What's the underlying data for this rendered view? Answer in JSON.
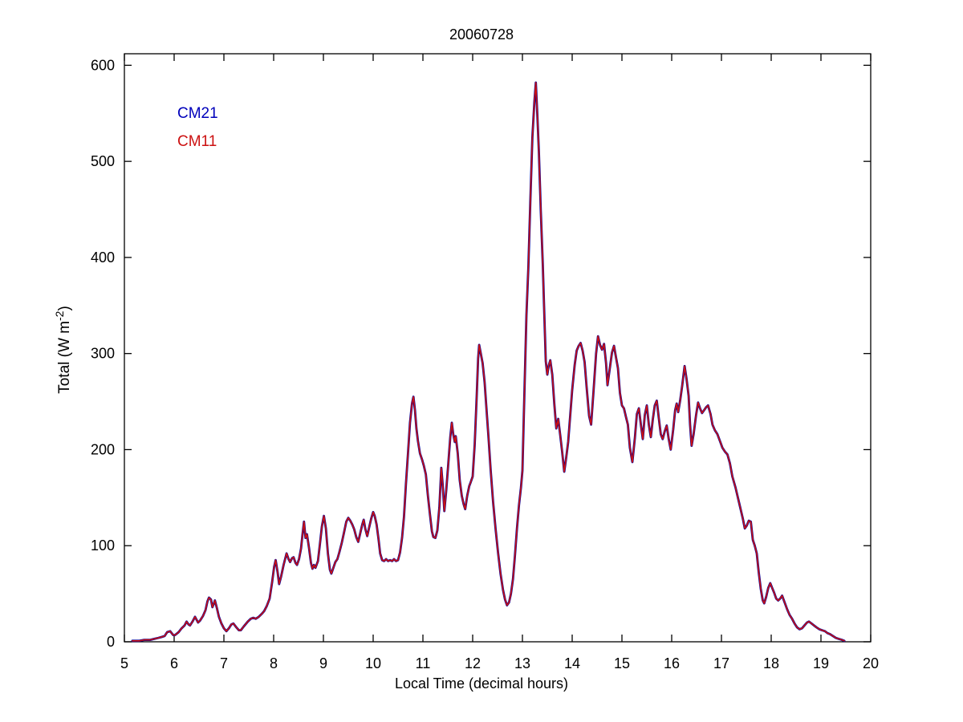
{
  "figure": {
    "title": "20060728",
    "background_color": "#ffffff",
    "axis_color": "#000000"
  },
  "chart_data": {
    "type": "line",
    "title": "20060728",
    "xlabel": "Local Time (decimal hours)",
    "ylabel": "Total (W m^-2)",
    "ylabel_parts": {
      "base": "Total (W m",
      "superscript": "-2",
      "close": ")"
    },
    "xlim": [
      5,
      20
    ],
    "ylim": [
      0,
      612
    ],
    "xticks": [
      5,
      6,
      7,
      8,
      9,
      10,
      11,
      12,
      13,
      14,
      15,
      16,
      17,
      18,
      19,
      20
    ],
    "yticks": [
      0,
      100,
      200,
      300,
      400,
      500,
      600
    ],
    "grid": false,
    "box": true,
    "legend": {
      "position": "upper-left-inside-text-only",
      "entries": [
        {
          "label": "CM21",
          "color": "#0000BB"
        },
        {
          "label": "CM11",
          "color": "#CC1111"
        }
      ]
    },
    "series": [
      {
        "name": "CM21",
        "color": "#000099",
        "line_width": 2.8,
        "note": "drawn first, visually coincident with CM11; peeks out as dark fringes"
      },
      {
        "name": "CM11",
        "color": "#CC1111",
        "line_width": 1.6,
        "note": "drawn on top of CM21"
      }
    ],
    "points_t_v": [
      [
        5.16,
        1
      ],
      [
        5.3,
        1
      ],
      [
        5.4,
        2
      ],
      [
        5.52,
        2
      ],
      [
        5.6,
        3
      ],
      [
        5.68,
        4
      ],
      [
        5.75,
        5
      ],
      [
        5.81,
        6
      ],
      [
        5.86,
        10
      ],
      [
        5.92,
        11
      ],
      [
        5.98,
        7
      ],
      [
        6.02,
        7
      ],
      [
        6.09,
        10
      ],
      [
        6.15,
        14
      ],
      [
        6.21,
        17
      ],
      [
        6.25,
        21
      ],
      [
        6.29,
        18
      ],
      [
        6.32,
        17
      ],
      [
        6.37,
        21
      ],
      [
        6.42,
        26
      ],
      [
        6.48,
        20
      ],
      [
        6.52,
        22
      ],
      [
        6.58,
        27
      ],
      [
        6.63,
        33
      ],
      [
        6.67,
        42
      ],
      [
        6.7,
        46
      ],
      [
        6.74,
        44
      ],
      [
        6.77,
        36
      ],
      [
        6.8,
        40
      ],
      [
        6.82,
        43
      ],
      [
        6.86,
        35
      ],
      [
        6.9,
        26
      ],
      [
        6.95,
        19
      ],
      [
        7.0,
        14
      ],
      [
        7.05,
        11
      ],
      [
        7.1,
        14
      ],
      [
        7.15,
        18
      ],
      [
        7.19,
        19
      ],
      [
        7.25,
        15
      ],
      [
        7.3,
        12
      ],
      [
        7.34,
        12
      ],
      [
        7.4,
        16
      ],
      [
        7.48,
        21
      ],
      [
        7.54,
        24
      ],
      [
        7.59,
        25
      ],
      [
        7.64,
        24
      ],
      [
        7.7,
        26
      ],
      [
        7.76,
        29
      ],
      [
        7.81,
        32
      ],
      [
        7.86,
        37
      ],
      [
        7.92,
        45
      ],
      [
        7.97,
        62
      ],
      [
        8.01,
        78
      ],
      [
        8.04,
        85
      ],
      [
        8.08,
        72
      ],
      [
        8.11,
        60
      ],
      [
        8.15,
        68
      ],
      [
        8.2,
        80
      ],
      [
        8.26,
        92
      ],
      [
        8.3,
        86
      ],
      [
        8.33,
        83
      ],
      [
        8.37,
        87
      ],
      [
        8.4,
        88
      ],
      [
        8.44,
        82
      ],
      [
        8.47,
        80
      ],
      [
        8.51,
        86
      ],
      [
        8.55,
        97
      ],
      [
        8.58,
        112
      ],
      [
        8.61,
        125
      ],
      [
        8.64,
        108
      ],
      [
        8.67,
        112
      ],
      [
        8.71,
        98
      ],
      [
        8.75,
        82
      ],
      [
        8.78,
        76
      ],
      [
        8.81,
        80
      ],
      [
        8.84,
        77
      ],
      [
        8.89,
        84
      ],
      [
        8.93,
        102
      ],
      [
        8.97,
        120
      ],
      [
        9.01,
        131
      ],
      [
        9.05,
        118
      ],
      [
        9.09,
        92
      ],
      [
        9.13,
        75
      ],
      [
        9.16,
        71
      ],
      [
        9.2,
        77
      ],
      [
        9.24,
        83
      ],
      [
        9.28,
        86
      ],
      [
        9.32,
        93
      ],
      [
        9.37,
        103
      ],
      [
        9.42,
        115
      ],
      [
        9.46,
        125
      ],
      [
        9.5,
        129
      ],
      [
        9.54,
        126
      ],
      [
        9.58,
        122
      ],
      [
        9.62,
        117
      ],
      [
        9.66,
        109
      ],
      [
        9.7,
        104
      ],
      [
        9.74,
        113
      ],
      [
        9.78,
        122
      ],
      [
        9.81,
        127
      ],
      [
        9.84,
        118
      ],
      [
        9.88,
        110
      ],
      [
        9.92,
        119
      ],
      [
        9.96,
        128
      ],
      [
        10.0,
        135
      ],
      [
        10.03,
        131
      ],
      [
        10.07,
        122
      ],
      [
        10.11,
        106
      ],
      [
        10.14,
        92
      ],
      [
        10.18,
        85
      ],
      [
        10.22,
        84
      ],
      [
        10.26,
        86
      ],
      [
        10.3,
        84
      ],
      [
        10.34,
        85
      ],
      [
        10.38,
        84
      ],
      [
        10.42,
        86
      ],
      [
        10.46,
        84
      ],
      [
        10.5,
        85
      ],
      [
        10.54,
        93
      ],
      [
        10.58,
        108
      ],
      [
        10.62,
        130
      ],
      [
        10.66,
        165
      ],
      [
        10.7,
        196
      ],
      [
        10.74,
        228
      ],
      [
        10.78,
        248
      ],
      [
        10.81,
        255
      ],
      [
        10.84,
        241
      ],
      [
        10.87,
        222
      ],
      [
        10.9,
        209
      ],
      [
        10.94,
        196
      ],
      [
        10.98,
        190
      ],
      [
        11.02,
        183
      ],
      [
        11.06,
        174
      ],
      [
        11.1,
        152
      ],
      [
        11.14,
        133
      ],
      [
        11.18,
        115
      ],
      [
        11.21,
        109
      ],
      [
        11.25,
        108
      ],
      [
        11.29,
        116
      ],
      [
        11.33,
        140
      ],
      [
        11.37,
        181
      ],
      [
        11.4,
        162
      ],
      [
        11.43,
        136
      ],
      [
        11.47,
        158
      ],
      [
        11.51,
        185
      ],
      [
        11.55,
        213
      ],
      [
        11.58,
        228
      ],
      [
        11.61,
        216
      ],
      [
        11.64,
        208
      ],
      [
        11.66,
        214
      ],
      [
        11.7,
        196
      ],
      [
        11.74,
        168
      ],
      [
        11.78,
        152
      ],
      [
        11.82,
        143
      ],
      [
        11.85,
        138
      ],
      [
        11.89,
        152
      ],
      [
        11.93,
        162
      ],
      [
        11.96,
        166
      ],
      [
        12.0,
        172
      ],
      [
        12.04,
        205
      ],
      [
        12.08,
        255
      ],
      [
        12.11,
        295
      ],
      [
        12.13,
        309
      ],
      [
        12.16,
        301
      ],
      [
        12.2,
        290
      ],
      [
        12.24,
        270
      ],
      [
        12.28,
        240
      ],
      [
        12.32,
        212
      ],
      [
        12.36,
        180
      ],
      [
        12.41,
        146
      ],
      [
        12.46,
        118
      ],
      [
        12.51,
        93
      ],
      [
        12.56,
        71
      ],
      [
        12.61,
        54
      ],
      [
        12.65,
        44
      ],
      [
        12.69,
        38
      ],
      [
        12.73,
        41
      ],
      [
        12.77,
        50
      ],
      [
        12.81,
        65
      ],
      [
        12.85,
        90
      ],
      [
        12.89,
        118
      ],
      [
        12.93,
        142
      ],
      [
        12.97,
        160
      ],
      [
        13.0,
        178
      ],
      [
        13.04,
        260
      ],
      [
        13.08,
        340
      ],
      [
        13.12,
        390
      ],
      [
        13.16,
        460
      ],
      [
        13.2,
        525
      ],
      [
        13.24,
        562
      ],
      [
        13.27,
        582
      ],
      [
        13.3,
        548
      ],
      [
        13.33,
        510
      ],
      [
        13.37,
        448
      ],
      [
        13.41,
        392
      ],
      [
        13.44,
        340
      ],
      [
        13.47,
        292
      ],
      [
        13.5,
        278
      ],
      [
        13.53,
        288
      ],
      [
        13.56,
        293
      ],
      [
        13.6,
        278
      ],
      [
        13.64,
        248
      ],
      [
        13.68,
        222
      ],
      [
        13.72,
        232
      ],
      [
        13.76,
        215
      ],
      [
        13.8,
        197
      ],
      [
        13.84,
        177
      ],
      [
        13.88,
        192
      ],
      [
        13.92,
        208
      ],
      [
        13.96,
        235
      ],
      [
        14.0,
        262
      ],
      [
        14.05,
        288
      ],
      [
        14.09,
        303
      ],
      [
        14.13,
        308
      ],
      [
        14.17,
        311
      ],
      [
        14.21,
        303
      ],
      [
        14.25,
        291
      ],
      [
        14.29,
        265
      ],
      [
        14.34,
        235
      ],
      [
        14.38,
        226
      ],
      [
        14.43,
        262
      ],
      [
        14.48,
        300
      ],
      [
        14.52,
        318
      ],
      [
        14.56,
        309
      ],
      [
        14.6,
        304
      ],
      [
        14.64,
        310
      ],
      [
        14.68,
        290
      ],
      [
        14.71,
        267
      ],
      [
        14.76,
        286
      ],
      [
        14.8,
        301
      ],
      [
        14.84,
        308
      ],
      [
        14.88,
        296
      ],
      [
        14.92,
        285
      ],
      [
        14.96,
        259
      ],
      [
        15.0,
        246
      ],
      [
        15.04,
        243
      ],
      [
        15.08,
        234
      ],
      [
        15.12,
        226
      ],
      [
        15.16,
        202
      ],
      [
        15.21,
        187
      ],
      [
        15.26,
        212
      ],
      [
        15.3,
        237
      ],
      [
        15.34,
        243
      ],
      [
        15.38,
        226
      ],
      [
        15.42,
        211
      ],
      [
        15.46,
        236
      ],
      [
        15.5,
        246
      ],
      [
        15.54,
        226
      ],
      [
        15.58,
        213
      ],
      [
        15.62,
        231
      ],
      [
        15.66,
        246
      ],
      [
        15.7,
        251
      ],
      [
        15.74,
        233
      ],
      [
        15.78,
        216
      ],
      [
        15.82,
        211
      ],
      [
        15.86,
        219
      ],
      [
        15.9,
        225
      ],
      [
        15.94,
        211
      ],
      [
        15.98,
        200
      ],
      [
        16.03,
        221
      ],
      [
        16.07,
        241
      ],
      [
        16.1,
        248
      ],
      [
        16.13,
        239
      ],
      [
        16.17,
        251
      ],
      [
        16.21,
        266
      ],
      [
        16.26,
        287
      ],
      [
        16.3,
        273
      ],
      [
        16.34,
        256
      ],
      [
        16.37,
        226
      ],
      [
        16.4,
        204
      ],
      [
        16.44,
        216
      ],
      [
        16.49,
        236
      ],
      [
        16.53,
        249
      ],
      [
        16.57,
        243
      ],
      [
        16.61,
        238
      ],
      [
        16.65,
        241
      ],
      [
        16.69,
        244
      ],
      [
        16.73,
        246
      ],
      [
        16.78,
        237
      ],
      [
        16.82,
        226
      ],
      [
        16.87,
        220
      ],
      [
        16.92,
        216
      ],
      [
        16.97,
        209
      ],
      [
        17.02,
        202
      ],
      [
        17.07,
        198
      ],
      [
        17.12,
        195
      ],
      [
        17.17,
        186
      ],
      [
        17.22,
        172
      ],
      [
        17.28,
        161
      ],
      [
        17.33,
        150
      ],
      [
        17.38,
        139
      ],
      [
        17.43,
        128
      ],
      [
        17.47,
        118
      ],
      [
        17.51,
        121
      ],
      [
        17.55,
        126
      ],
      [
        17.59,
        125
      ],
      [
        17.63,
        106
      ],
      [
        17.67,
        100
      ],
      [
        17.71,
        92
      ],
      [
        17.75,
        72
      ],
      [
        17.79,
        55
      ],
      [
        17.83,
        43
      ],
      [
        17.86,
        40
      ],
      [
        17.9,
        47
      ],
      [
        17.94,
        56
      ],
      [
        17.98,
        61
      ],
      [
        18.02,
        56
      ],
      [
        18.06,
        51
      ],
      [
        18.1,
        45
      ],
      [
        18.14,
        43
      ],
      [
        18.18,
        45
      ],
      [
        18.22,
        48
      ],
      [
        18.27,
        41
      ],
      [
        18.32,
        34
      ],
      [
        18.37,
        28
      ],
      [
        18.42,
        24
      ],
      [
        18.47,
        19
      ],
      [
        18.52,
        15
      ],
      [
        18.57,
        13
      ],
      [
        18.62,
        14
      ],
      [
        18.67,
        17
      ],
      [
        18.72,
        20
      ],
      [
        18.76,
        21
      ],
      [
        18.81,
        19
      ],
      [
        18.86,
        17
      ],
      [
        18.91,
        15
      ],
      [
        18.97,
        13
      ],
      [
        19.02,
        12
      ],
      [
        19.08,
        11
      ],
      [
        19.13,
        9
      ],
      [
        19.18,
        8
      ],
      [
        19.24,
        6
      ],
      [
        19.3,
        4
      ],
      [
        19.36,
        3
      ],
      [
        19.42,
        2
      ],
      [
        19.47,
        1
      ]
    ]
  }
}
